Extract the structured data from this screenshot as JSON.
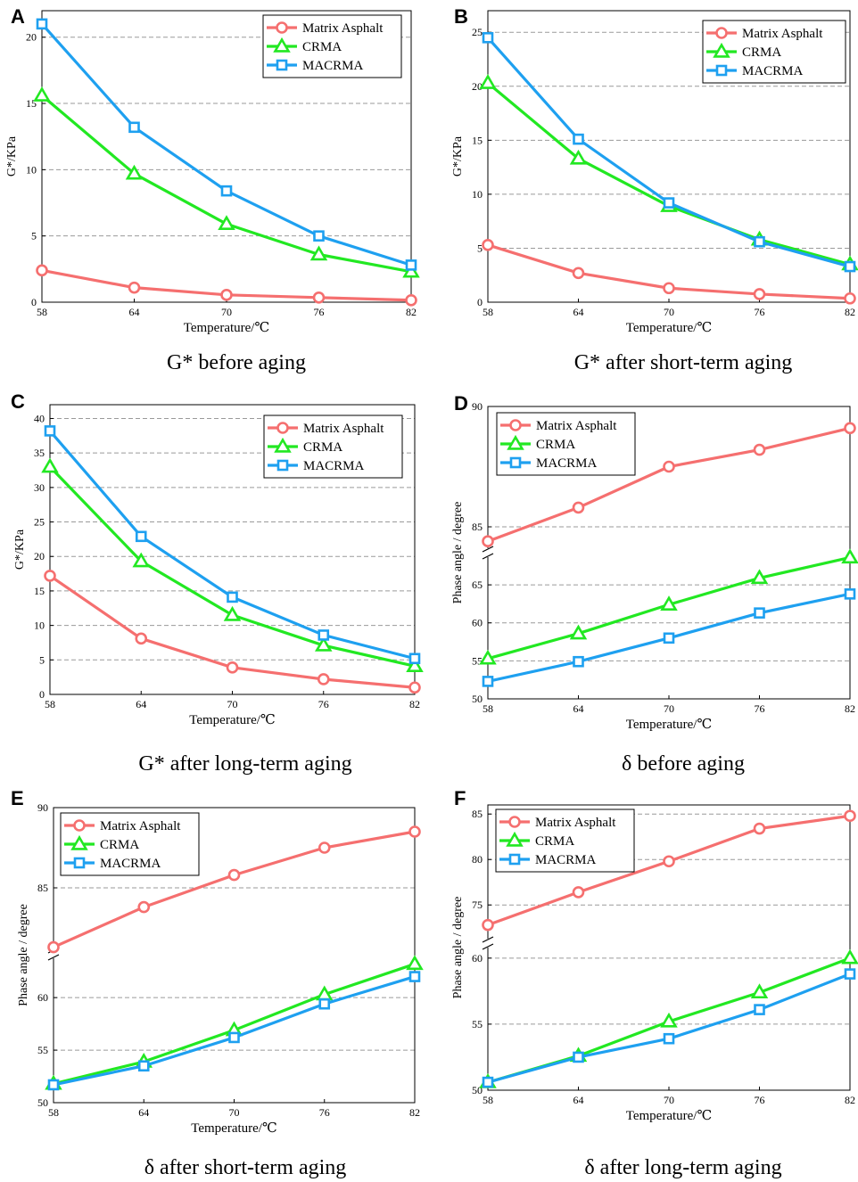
{
  "series_names": [
    "Matrix Asphalt",
    "CRMA",
    "MACRMA"
  ],
  "colors": {
    "Matrix Asphalt": "#f56f6f",
    "CRMA": "#22e822",
    "MACRMA": "#1ea0f0",
    "grid": "#9a9a9a",
    "axis": "#000000"
  },
  "chart_data": [
    {
      "type": "line",
      "panel_letter": "A",
      "caption": "G* before aging",
      "xlabel": "Temperature/℃",
      "ylabel": "G*/KPa",
      "x": [
        58,
        64,
        70,
        76,
        82
      ],
      "ylim": [
        0,
        22
      ],
      "yticks": [
        0,
        5,
        10,
        15,
        20
      ],
      "grid": true,
      "legend": "top-right",
      "series": [
        {
          "name": "Matrix Asphalt",
          "marker": "circle",
          "values": [
            2.4,
            1.1,
            0.55,
            0.35,
            0.15
          ]
        },
        {
          "name": "CRMA",
          "marker": "triangle",
          "values": [
            15.6,
            9.7,
            5.9,
            3.6,
            2.3
          ]
        },
        {
          "name": "MACRMA",
          "marker": "square",
          "values": [
            21.0,
            13.2,
            8.4,
            5.0,
            2.8
          ]
        }
      ]
    },
    {
      "type": "line",
      "panel_letter": "B",
      "caption": "G* after short-term aging",
      "xlabel": "Temperature/℃",
      "ylabel": "G*/KPa",
      "x": [
        58,
        64,
        70,
        76,
        82
      ],
      "ylim": [
        0,
        27
      ],
      "yticks": [
        0,
        5,
        10,
        15,
        20,
        25
      ],
      "grid": true,
      "legend": "top-right",
      "series": [
        {
          "name": "Matrix Asphalt",
          "marker": "circle",
          "values": [
            5.3,
            2.7,
            1.3,
            0.75,
            0.35
          ]
        },
        {
          "name": "CRMA",
          "marker": "triangle",
          "values": [
            20.3,
            13.3,
            8.9,
            5.8,
            3.5
          ]
        },
        {
          "name": "MACRMA",
          "marker": "square",
          "values": [
            24.5,
            15.1,
            9.2,
            5.6,
            3.3
          ]
        }
      ]
    },
    {
      "type": "line",
      "panel_letter": "C",
      "caption": "G* after long-term aging",
      "xlabel": "Temperature/℃",
      "ylabel": "G*/KPa",
      "x": [
        58,
        64,
        70,
        76,
        82
      ],
      "ylim": [
        0,
        42
      ],
      "yticks": [
        0,
        5,
        10,
        15,
        20,
        25,
        30,
        35,
        40
      ],
      "grid": true,
      "legend": "top-right",
      "series": [
        {
          "name": "Matrix Asphalt",
          "marker": "circle",
          "values": [
            17.2,
            8.1,
            3.9,
            2.2,
            1.0
          ]
        },
        {
          "name": "CRMA",
          "marker": "triangle",
          "values": [
            33.0,
            19.3,
            11.5,
            7.1,
            4.1
          ]
        },
        {
          "name": "MACRMA",
          "marker": "square",
          "values": [
            38.2,
            22.9,
            14.1,
            8.6,
            5.2
          ]
        }
      ]
    },
    {
      "type": "line",
      "panel_letter": "D",
      "caption": "δ before aging",
      "xlabel": "Temperature/℃",
      "ylabel": "Phase angle / degree",
      "x": [
        58,
        64,
        70,
        76,
        82
      ],
      "broken_axis": true,
      "upper_range": [
        84,
        90
      ],
      "upper_ticks": [
        85,
        90
      ],
      "lower_range": [
        50,
        69
      ],
      "lower_ticks": [
        50,
        55,
        60,
        65
      ],
      "grid": true,
      "legend": "top-left",
      "series": [
        {
          "name": "Matrix Asphalt",
          "marker": "circle",
          "values": [
            84.4,
            85.8,
            87.5,
            88.2,
            89.1
          ]
        },
        {
          "name": "CRMA",
          "marker": "triangle",
          "values": [
            55.3,
            58.6,
            62.4,
            65.9,
            68.6
          ]
        },
        {
          "name": "MACRMA",
          "marker": "square",
          "values": [
            52.3,
            54.9,
            58.0,
            61.3,
            63.8
          ]
        }
      ]
    },
    {
      "type": "line",
      "panel_letter": "E",
      "caption": "δ after short-term aging",
      "xlabel": "Temperature/℃",
      "ylabel": "Phase angle / degree",
      "x": [
        58,
        64,
        70,
        76,
        82
      ],
      "broken_axis": true,
      "upper_range": [
        81,
        90
      ],
      "upper_ticks": [
        85,
        90
      ],
      "lower_range": [
        50,
        64
      ],
      "lower_ticks": [
        50,
        55,
        60
      ],
      "grid": true,
      "legend": "top-left",
      "series": [
        {
          "name": "Matrix Asphalt",
          "marker": "circle",
          "values": [
            81.3,
            83.8,
            85.8,
            87.5,
            88.5
          ]
        },
        {
          "name": "CRMA",
          "marker": "triangle",
          "values": [
            51.8,
            53.9,
            56.9,
            60.3,
            63.2
          ]
        },
        {
          "name": "MACRMA",
          "marker": "square",
          "values": [
            51.7,
            53.5,
            56.2,
            59.4,
            62.0
          ]
        }
      ]
    },
    {
      "type": "line",
      "panel_letter": "F",
      "caption": "δ after long-term aging",
      "xlabel": "Temperature/℃",
      "ylabel": "Phase angle / degree",
      "x": [
        58,
        64,
        70,
        76,
        82
      ],
      "broken_axis": true,
      "upper_range": [
        71,
        86
      ],
      "upper_ticks": [
        75,
        80,
        85
      ],
      "lower_range": [
        50,
        61
      ],
      "lower_ticks": [
        50,
        55,
        60
      ],
      "grid": true,
      "legend": "top-left",
      "series": [
        {
          "name": "Matrix Asphalt",
          "marker": "circle",
          "values": [
            72.8,
            76.4,
            79.8,
            83.4,
            84.8
          ]
        },
        {
          "name": "CRMA",
          "marker": "triangle",
          "values": [
            50.6,
            52.6,
            55.2,
            57.4,
            60.0
          ]
        },
        {
          "name": "MACRMA",
          "marker": "square",
          "values": [
            50.6,
            52.5,
            53.9,
            56.1,
            58.8
          ]
        }
      ]
    }
  ]
}
